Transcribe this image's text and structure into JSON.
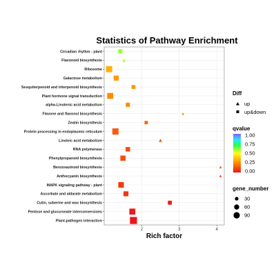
{
  "chart_data": {
    "type": "scatter",
    "title": "Statistics of Pathway Enrichment",
    "xlabel": "Rich factor",
    "ylabel": "",
    "xlim": [
      1.0,
      4.2
    ],
    "xticks": [
      2,
      3,
      4
    ],
    "grid": true,
    "points": [
      {
        "pathway": "Circadian rhythm - plant",
        "x": 1.43,
        "diff": "up&down",
        "qvalue": 0.6,
        "gene_number": 20
      },
      {
        "pathway": "Flavonoid biosynthesis",
        "x": 1.53,
        "diff": "up",
        "qvalue": 0.57,
        "gene_number": 14
      },
      {
        "pathway": "Ribosome",
        "x": 1.13,
        "diff": "up&down",
        "qvalue": 0.33,
        "gene_number": 64
      },
      {
        "pathway": "Galactose metabolism",
        "x": 1.32,
        "diff": "up&down",
        "qvalue": 0.28,
        "gene_number": 36
      },
      {
        "pathway": "Sesquiterpenoid and triterpenoid biosynthesis",
        "x": 1.78,
        "diff": "up&down",
        "qvalue": 0.27,
        "gene_number": 16
      },
      {
        "pathway": "Plant hormone signal transduction",
        "x": 1.16,
        "diff": "up&down",
        "qvalue": 0.25,
        "gene_number": 56
      },
      {
        "pathway": "alpha-Linolenic acid metabolism",
        "x": 1.63,
        "diff": "up&down",
        "qvalue": 0.25,
        "gene_number": 20
      },
      {
        "pathway": "Flavone and flavonol biosynthesis",
        "x": 3.1,
        "diff": "up",
        "qvalue": 0.25,
        "gene_number": 4
      },
      {
        "pathway": "Zeatin biosynthesis",
        "x": 2.12,
        "diff": "up&down",
        "qvalue": 0.18,
        "gene_number": 10
      },
      {
        "pathway": "Protein processing in endoplasmic reticulum",
        "x": 1.3,
        "diff": "up&down",
        "qvalue": 0.15,
        "gene_number": 64
      },
      {
        "pathway": "Linoleic acid metabolism",
        "x": 2.5,
        "diff": "up",
        "qvalue": 0.15,
        "gene_number": 12
      },
      {
        "pathway": "RNA polymerase",
        "x": 1.63,
        "diff": "up&down",
        "qvalue": 0.12,
        "gene_number": 26
      },
      {
        "pathway": "Phenylpropanoid biosynthesis",
        "x": 1.5,
        "diff": "up&down",
        "qvalue": 0.12,
        "gene_number": 40
      },
      {
        "pathway": "Benzoxazinoid biosynthesis",
        "x": 4.1,
        "diff": "up",
        "qvalue": 0.12,
        "gene_number": 4
      },
      {
        "pathway": "Anthocyanin biosynthesis",
        "x": 4.1,
        "diff": "up",
        "qvalue": 0.1,
        "gene_number": 4
      },
      {
        "pathway": "MAPK signaling pathway - plant",
        "x": 1.45,
        "diff": "up&down",
        "qvalue": 0.08,
        "gene_number": 48
      },
      {
        "pathway": "Ascorbate and aldarate metabolism",
        "x": 1.58,
        "diff": "up&down",
        "qvalue": 0.07,
        "gene_number": 34
      },
      {
        "pathway": "Cutin, suberine and wax biosynthesis",
        "x": 2.75,
        "diff": "up&down",
        "qvalue": 0.02,
        "gene_number": 18
      },
      {
        "pathway": "Pentose and glucuronate interconversions",
        "x": 1.75,
        "diff": "up&down",
        "qvalue": 0.01,
        "gene_number": 58
      },
      {
        "pathway": "Plant-pathogen interaction",
        "x": 1.78,
        "diff": "up&down",
        "qvalue": 0.0,
        "gene_number": 88
      }
    ],
    "legend": {
      "diff": {
        "title": "Diff",
        "items": [
          "up",
          "up&down"
        ]
      },
      "qvalue": {
        "title": "qvalue",
        "ticks": [
          "1.00",
          "0.75",
          "0.50",
          "0.25",
          "0.00"
        ],
        "range": [
          0,
          1
        ]
      },
      "gene_number": {
        "title": "gene_number",
        "items": [
          30,
          60,
          90
        ]
      }
    },
    "legend_placement": "right",
    "colors": {
      "gradient": [
        "#e8161b",
        "#ff8c00",
        "#ffff1a",
        "#2cff47",
        "#1fe8ff",
        "#8a5cff"
      ],
      "grid": "#e6e6e6",
      "panel_border": "#7f7f7f"
    }
  }
}
